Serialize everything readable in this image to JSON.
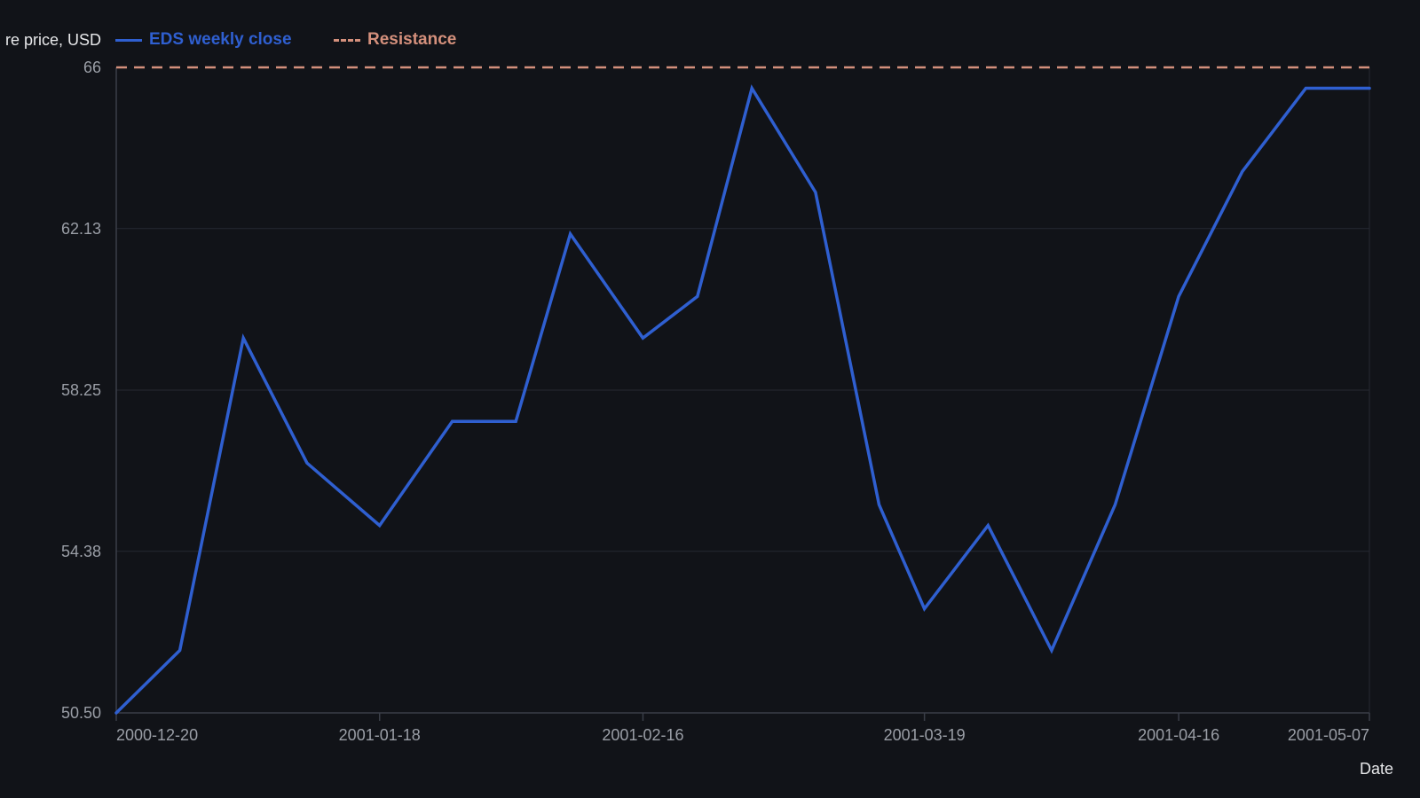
{
  "colors": {
    "background": "#111318",
    "series_line": "#2f5fd0",
    "resistance_line": "#d4907c",
    "grid": "#262932",
    "axis": "#3a3e48",
    "tick_text": "#9a9ea6",
    "title_text": "#e7e8ea"
  },
  "chart_data": {
    "type": "line",
    "ylabel": "re price, USD",
    "xlabel": "Date",
    "ylim": [
      50.5,
      66
    ],
    "yticks": [
      "50.50",
      "54.38",
      "58.25",
      "62.13",
      "66"
    ],
    "xticks": [
      "2000-12-20",
      "2001-01-18",
      "2001-02-16",
      "2001-03-19",
      "2001-04-16",
      "2001-05-07"
    ],
    "grid": true,
    "legend_position": "top-left",
    "series": [
      {
        "name": "EDS weekly close",
        "style": "solid",
        "x": [
          "2000-12-20",
          "2000-12-27",
          "2001-01-03",
          "2001-01-10",
          "2001-01-18",
          "2001-01-26",
          "2001-02-02",
          "2001-02-08",
          "2001-02-16",
          "2001-02-22",
          "2001-02-28",
          "2001-03-07",
          "2001-03-14",
          "2001-03-19",
          "2001-03-26",
          "2001-04-02",
          "2001-04-09",
          "2001-04-16",
          "2001-04-23",
          "2001-04-30",
          "2001-05-07"
        ],
        "values": [
          50.5,
          52.0,
          59.5,
          56.5,
          55.0,
          57.5,
          57.5,
          62.0,
          59.5,
          60.5,
          65.5,
          63.0,
          55.5,
          53.0,
          55.0,
          52.0,
          55.5,
          60.5,
          63.5,
          65.5,
          65.5
        ]
      },
      {
        "name": "Resistance",
        "style": "dashed",
        "x": [
          "2000-12-20",
          "2001-05-07"
        ],
        "values": [
          66,
          66
        ]
      }
    ]
  }
}
